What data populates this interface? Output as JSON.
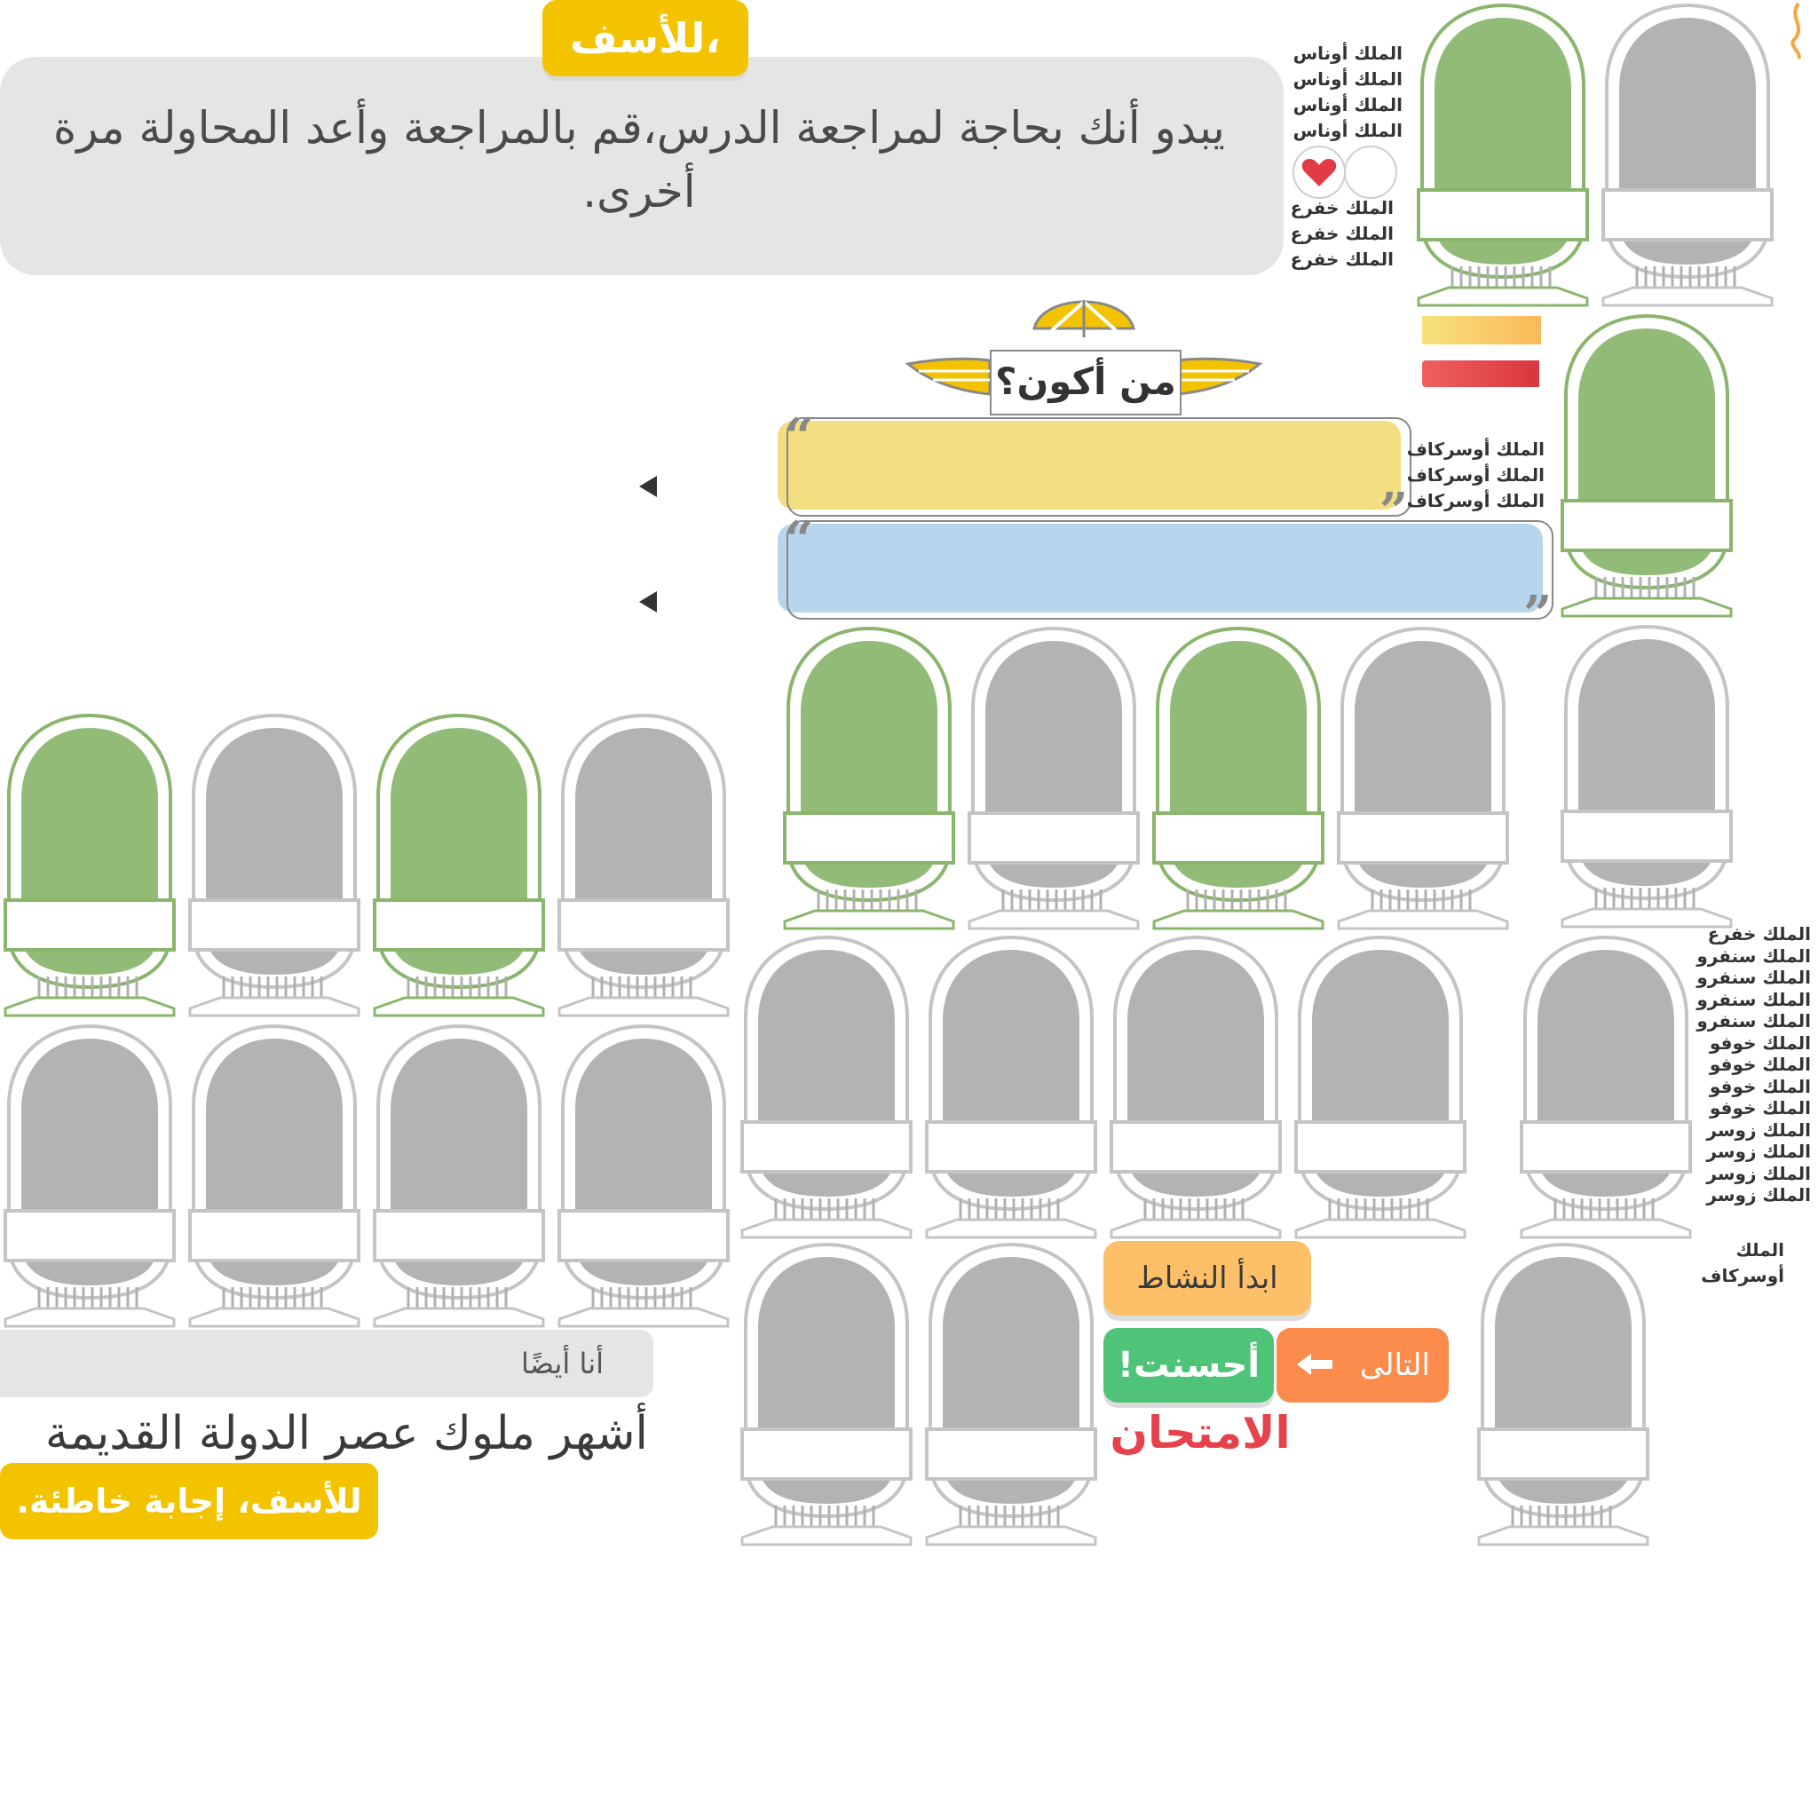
{
  "header": {
    "title_badge": "للأسف،",
    "message": "يبدو أنك بحاجة لمراجعة الدرس،قم بالمراجعة وأعد المحاولة مرة أخرى."
  },
  "question": {
    "title": "من أكون؟"
  },
  "labels": {
    "unas": [
      "الملك أوناس",
      "الملك أوناس",
      "الملك أوناس",
      "الملك أوناس"
    ],
    "khafra_top": [
      "الملك خفرع",
      "الملك خفرع",
      "الملك خفرع"
    ],
    "userkaf_mid": [
      "الملك أوسركاف",
      "الملك أوسركاف",
      "الملك أوسركاف"
    ],
    "right_list": [
      "الملك خفرع",
      "الملك سنفرو",
      "الملك سنفرو",
      "الملك سنفرو",
      "الملك سنفرو",
      "الملك خوفو",
      "الملك خوفو",
      "الملك خوفو",
      "الملك خوفو",
      "الملك زوسر",
      "الملك زوسر",
      "الملك زوسر",
      "الملك زوسر"
    ],
    "userkaf_bottom": "الملك أوسركاف"
  },
  "hearts": {
    "filled": 1,
    "total": 2
  },
  "buttons": {
    "start": "ابدأ النشاط",
    "good": "أحسنت!",
    "next": "التالى"
  },
  "exam_title": "الامتحان",
  "me_too": "أنا أيضًا",
  "heading": "أشهر ملوك عصر الدولة القديمة",
  "wrong_answer": "للأسف، إجابة خاطئة.",
  "colors": {
    "green_fill": "#93bb78",
    "green_stroke": "#8ab56c",
    "grey_fill": "#b3b3b3",
    "grey_stroke": "#c4c4c4",
    "yellow": "#f4c300",
    "orange": "#fb8c4c",
    "success": "#4fc478",
    "red": "#e6424b"
  },
  "cartouches": [
    {
      "color": "green"
    },
    {
      "color": "grey"
    },
    {
      "color": "green"
    },
    {
      "color": "green"
    },
    {
      "color": "grey"
    },
    {
      "color": "green"
    },
    {
      "color": "grey"
    },
    {
      "color": "grey"
    },
    {
      "color": "green"
    },
    {
      "color": "grey"
    },
    {
      "color": "green"
    },
    {
      "color": "grey"
    },
    {
      "color": "grey"
    },
    {
      "color": "grey"
    },
    {
      "color": "grey"
    },
    {
      "color": "grey"
    },
    {
      "color": "grey"
    },
    {
      "color": "grey"
    },
    {
      "color": "grey"
    },
    {
      "color": "grey"
    },
    {
      "color": "grey"
    },
    {
      "color": "grey"
    },
    {
      "color": "grey"
    },
    {
      "color": "grey"
    }
  ]
}
